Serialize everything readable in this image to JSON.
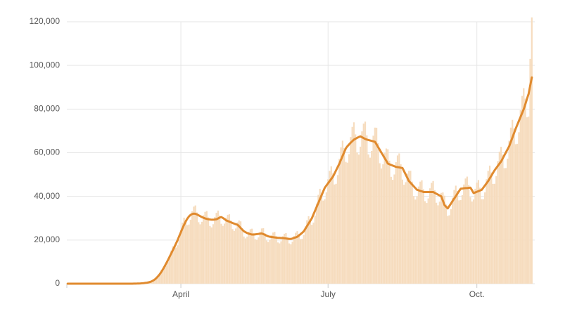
{
  "chart_data": {
    "type": "bar",
    "categories": [
      null,
      null,
      null,
      null,
      null,
      null,
      null,
      null,
      null,
      null,
      null,
      null,
      null,
      null,
      null,
      null,
      null,
      null,
      null,
      null,
      null,
      null,
      null,
      null,
      null,
      null,
      null,
      null,
      null,
      null,
      null,
      null,
      null,
      null,
      null,
      null,
      null,
      null,
      null,
      null,
      null,
      null,
      null,
      null,
      null,
      null,
      null,
      null,
      null,
      null,
      null,
      null,
      null,
      null,
      null,
      null,
      null,
      null,
      null,
      null,
      null,
      null,
      null,
      null,
      null,
      null,
      null,
      null,
      null,
      null,
      "April",
      null,
      null,
      null,
      null,
      null,
      null,
      null,
      null,
      null,
      null,
      null,
      null,
      null,
      null,
      null,
      null,
      null,
      null,
      null,
      null,
      null,
      null,
      null,
      null,
      null,
      null,
      null,
      null,
      null,
      null,
      null,
      null,
      null,
      null,
      null,
      null,
      null,
      null,
      null,
      null,
      null,
      null,
      null,
      null,
      null,
      null,
      null,
      null,
      null,
      null,
      null,
      null,
      null,
      null,
      null,
      null,
      null,
      null,
      null,
      null,
      null,
      null,
      null,
      null,
      null,
      null,
      null,
      null,
      null,
      null,
      null,
      null,
      null,
      null,
      null,
      null,
      null,
      null,
      null,
      null,
      null,
      null,
      null,
      null,
      null,
      null,
      null,
      null,
      null,
      null,
      "July",
      null,
      null,
      null,
      null,
      null,
      null,
      null,
      null,
      null,
      null,
      null,
      null,
      null,
      null,
      null,
      null,
      null,
      null,
      null,
      null,
      null,
      null,
      null,
      null,
      null,
      null,
      null,
      null,
      null,
      null,
      null,
      null,
      null,
      null,
      null,
      null,
      null,
      null,
      null,
      null,
      null,
      null,
      null,
      null,
      null,
      null,
      null,
      null,
      null,
      null,
      null,
      null,
      null,
      null,
      null,
      null,
      null,
      null,
      null,
      null,
      null,
      null,
      null,
      null,
      null,
      null,
      null,
      null,
      null,
      null,
      null,
      null,
      null,
      null,
      null,
      null,
      null,
      null,
      null,
      null,
      null,
      null,
      null,
      null,
      null,
      null,
      null,
      null,
      null,
      null,
      null,
      "Oct.",
      null,
      null,
      null,
      null,
      null,
      null,
      null,
      null,
      null,
      null,
      null,
      null,
      null,
      null,
      null,
      null,
      null,
      null,
      null,
      null,
      null,
      null,
      null,
      null,
      null,
      null,
      null,
      null,
      null,
      null,
      null,
      null,
      null,
      null
    ],
    "series": [
      {
        "type": "bar",
        "color": "#f6dcbe",
        "values": [
          0,
          0,
          0,
          0,
          0,
          0,
          0,
          0,
          0,
          0,
          0,
          0,
          0,
          0,
          0,
          0,
          0,
          0,
          0,
          0,
          0,
          0,
          0,
          0,
          0,
          0,
          0,
          0,
          0,
          0,
          0,
          0,
          0,
          0,
          0,
          0,
          0,
          0,
          0,
          0,
          18,
          28,
          52,
          66,
          101,
          124,
          162,
          220,
          326,
          468,
          660,
          896,
          1133,
          1350,
          1760,
          2511,
          3640,
          4840,
          6160,
          6901,
          7200,
          8272,
          10044,
          12792,
          15180,
          17136,
          17304,
          16560,
          17600,
          20274,
          24544,
          27940,
          30240,
          29355,
          26820,
          27104,
          29295,
          33176,
          35310,
          35840,
          32651,
          28170,
          27192,
          28365,
          31408,
          32890,
          33264,
          30385,
          26460,
          25784,
          27249,
          30576,
          32450,
          33488,
          31209,
          27450,
          26488,
          27528,
          30160,
          31570,
          31808,
          28943,
          25020,
          24200,
          25296,
          28080,
          28930,
          28560,
          25441,
          21600,
          20768,
          21576,
          23816,
          24970,
          25200,
          23175,
          20340,
          19976,
          21204,
          23816,
          25300,
          25424,
          23072,
          19800,
          19096,
          19995,
          22256,
          23430,
          23744,
          21733,
          18900,
          18480,
          19437,
          21736,
          22880,
          23184,
          21218,
          18450,
          18040,
          19251,
          21840,
          23320,
          24080,
          22763,
          20430,
          20504,
          22320,
          26208,
          29040,
          30912,
          29664,
          27000,
          27984,
          31155,
          36712,
          40700,
          43456,
          41715,
          38070,
          38720,
          41850,
          47840,
          51700,
          53760,
          50470,
          45450,
          45760,
          49755,
          57200,
          62480,
          65520,
          62109,
          55800,
          55440,
          59334,
          67184,
          71830,
          73920,
          68392,
          60120,
          59136,
          62775,
          69784,
          73370,
          74256,
          67980,
          59220,
          57728,
          60822,
          67808,
          71500,
          71456,
          64375,
          55170,
          52800,
          54684,
          59800,
          61930,
          61600,
          56341,
          48960,
          47608,
          50034,
          55640,
          58740,
          59696,
          54693,
          47700,
          45320,
          46500,
          50440,
          51700,
          51744,
          46762,
          40140,
          38544,
          39990,
          44512,
          46750,
          47376,
          43260,
          37800,
          36960,
          39060,
          43680,
          46200,
          47040,
          42848,
          37080,
          35904,
          37572,
          41600,
          41800,
          40320,
          36256,
          31050,
          31328,
          34131,
          39416,
          42900,
          44912,
          42539,
          38160,
          38280,
          40548,
          45448,
          48180,
          49056,
          45217,
          39600,
          37664,
          38595,
          43472,
          46310,
          47488,
          43981,
          38700,
          38720,
          41850,
          47840,
          51700,
          54096,
          50985,
          45720,
          45760,
          49290,
          56160,
          60500,
          62720,
          59122,
          52920,
          52976,
          57288,
          65520,
          71500,
          75040,
          71070,
          63900,
          64064,
          69378,
          79456,
          86020,
          89600,
          84769,
          76230,
          76560,
          103000,
          122000
        ]
      },
      {
        "type": "line",
        "color": "#e08a2e",
        "values": [
          0,
          0,
          0,
          0,
          0,
          0,
          0,
          0,
          0,
          0,
          0,
          0,
          0,
          0,
          0,
          0,
          0,
          0,
          0,
          0,
          0,
          0,
          0,
          0,
          0,
          0,
          0,
          0,
          0,
          0,
          0,
          0,
          0,
          0,
          0,
          0,
          0,
          0,
          0,
          0,
          20,
          30,
          50,
          60,
          90,
          120,
          180,
          250,
          350,
          450,
          600,
          800,
          1100,
          1500,
          2000,
          2700,
          3500,
          4400,
          5500,
          6700,
          8000,
          9400,
          10800,
          12300,
          13800,
          15300,
          16800,
          18400,
          20000,
          21800,
          23600,
          25400,
          27000,
          28500,
          29800,
          30800,
          31500,
          31900,
          32100,
          32000,
          31700,
          31300,
          30900,
          30500,
          30200,
          29900,
          29700,
          29500,
          29400,
          29300,
          29300,
          29400,
          29500,
          29900,
          30300,
          30500,
          30100,
          29600,
          29000,
          28700,
          28400,
          28100,
          27800,
          27500,
          27200,
          27000,
          26300,
          25500,
          24700,
          24000,
          23600,
          23200,
          22900,
          22700,
          22500,
          22500,
          22600,
          22700,
          22800,
          22900,
          23000,
          22700,
          22400,
          22000,
          21700,
          21500,
          21400,
          21300,
          21200,
          21100,
          21000,
          21000,
          20900,
          20900,
          20800,
          20700,
          20600,
          20500,
          20500,
          20700,
          21000,
          21200,
          21500,
          22100,
          22700,
          23300,
          24000,
          25200,
          26400,
          27600,
          28800,
          30000,
          31800,
          33500,
          35300,
          37000,
          38800,
          40500,
          42300,
          44000,
          45000,
          46000,
          47000,
          48000,
          49000,
          50500,
          52000,
          53500,
          55000,
          56800,
          58500,
          60300,
          62000,
          63000,
          63800,
          64600,
          65300,
          66000,
          66400,
          66800,
          67200,
          67500,
          67100,
          66700,
          66300,
          66000,
          65800,
          65600,
          65400,
          65200,
          65000,
          63800,
          62500,
          61300,
          60000,
          58800,
          57500,
          56300,
          55000,
          54700,
          54400,
          54100,
          53800,
          53500,
          53400,
          53300,
          53100,
          53000,
          51500,
          50000,
          48500,
          47000,
          46200,
          45400,
          44600,
          43800,
          43000,
          42800,
          42500,
          42300,
          42000,
          42000,
          42000,
          42000,
          42000,
          42000,
          42000,
          41600,
          41200,
          40800,
          40400,
          40000,
          38000,
          36000,
          35200,
          34500,
          35600,
          36700,
          37900,
          39000,
          40100,
          41300,
          42400,
          43500,
          43600,
          43700,
          43800,
          43800,
          43900,
          44000,
          42800,
          41500,
          41800,
          42100,
          42400,
          42700,
          43000,
          44000,
          45000,
          46000,
          47000,
          48300,
          49500,
          50800,
          52000,
          53000,
          54000,
          55000,
          56000,
          57400,
          58800,
          60200,
          61600,
          63000,
          65000,
          67000,
          69000,
          71000,
          72800,
          74600,
          76400,
          78200,
          80000,
          82300,
          84700,
          87000,
          90800,
          94500
        ]
      }
    ],
    "ylim": [
      0,
      120000
    ],
    "yticks": [
      0,
      {
        "value": 20000,
        "label": "20,000"
      },
      {
        "value": 40000,
        "label": "40,000"
      },
      {
        "value": 60000,
        "label": "60,000"
      },
      {
        "value": 80000,
        "label": "80,000"
      },
      {
        "value": 100000,
        "label": "100,000"
      },
      {
        "value": 120000,
        "label": "120,000"
      }
    ],
    "grid": true
  }
}
